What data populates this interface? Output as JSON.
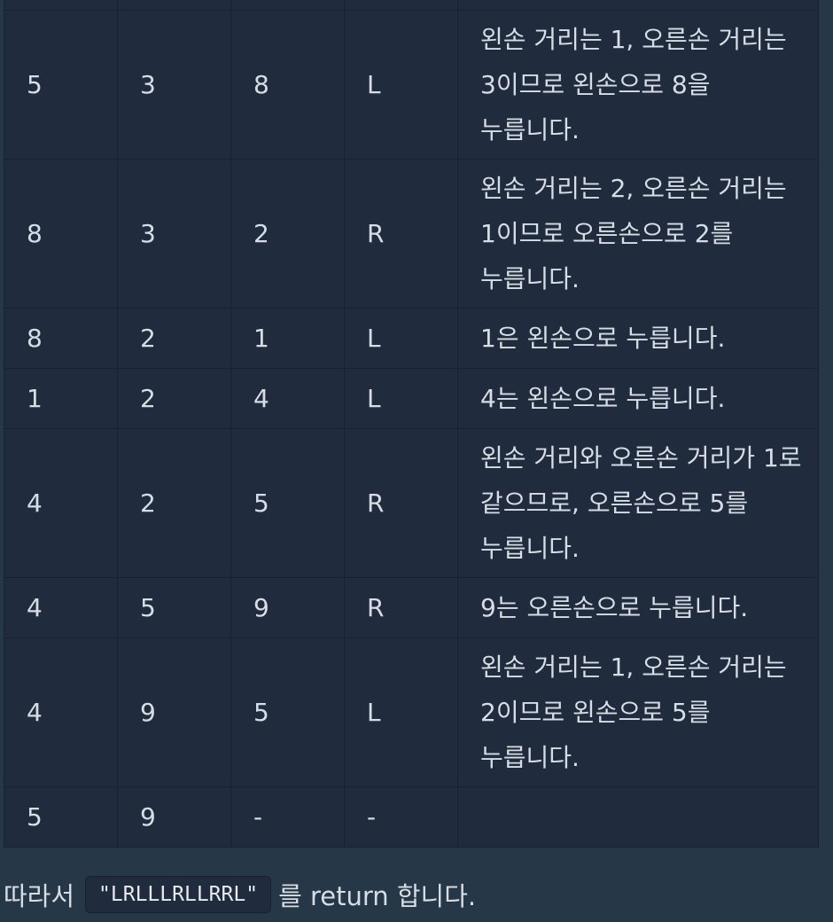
{
  "table": {
    "rows": [
      {
        "c1": "",
        "c2": "",
        "c3": "",
        "c4": "",
        "desc": ""
      },
      {
        "c1": "5",
        "c2": "3",
        "c3": "8",
        "c4": "L",
        "desc": "왼손 거리는 1, 오른손 거리는 3이므로 왼손으로 8을 누릅니다."
      },
      {
        "c1": "8",
        "c2": "3",
        "c3": "2",
        "c4": "R",
        "desc": "왼손 거리는 2, 오른손 거리는 1이므로 오른손으로 2를 누릅니다."
      },
      {
        "c1": "8",
        "c2": "2",
        "c3": "1",
        "c4": "L",
        "desc": "1은 왼손으로 누릅니다."
      },
      {
        "c1": "1",
        "c2": "2",
        "c3": "4",
        "c4": "L",
        "desc": "4는 왼손으로 누릅니다."
      },
      {
        "c1": "4",
        "c2": "2",
        "c3": "5",
        "c4": "R",
        "desc": "왼손 거리와 오른손 거리가 1로 같으므로, 오른손으로 5를 누릅니다."
      },
      {
        "c1": "4",
        "c2": "5",
        "c3": "9",
        "c4": "R",
        "desc": "9는 오른손으로 누릅니다."
      },
      {
        "c1": "4",
        "c2": "9",
        "c3": "5",
        "c4": "L",
        "desc": "왼손 거리는 1, 오른손 거리는 2이므로 왼손으로 5를 누릅니다."
      },
      {
        "c1": "5",
        "c2": "9",
        "c3": "-",
        "c4": "-",
        "desc": ""
      }
    ]
  },
  "footer": {
    "prefix": "따라서",
    "code": "\"LRLLLRLLRRL\"",
    "suffix": "를 return 합니다."
  }
}
